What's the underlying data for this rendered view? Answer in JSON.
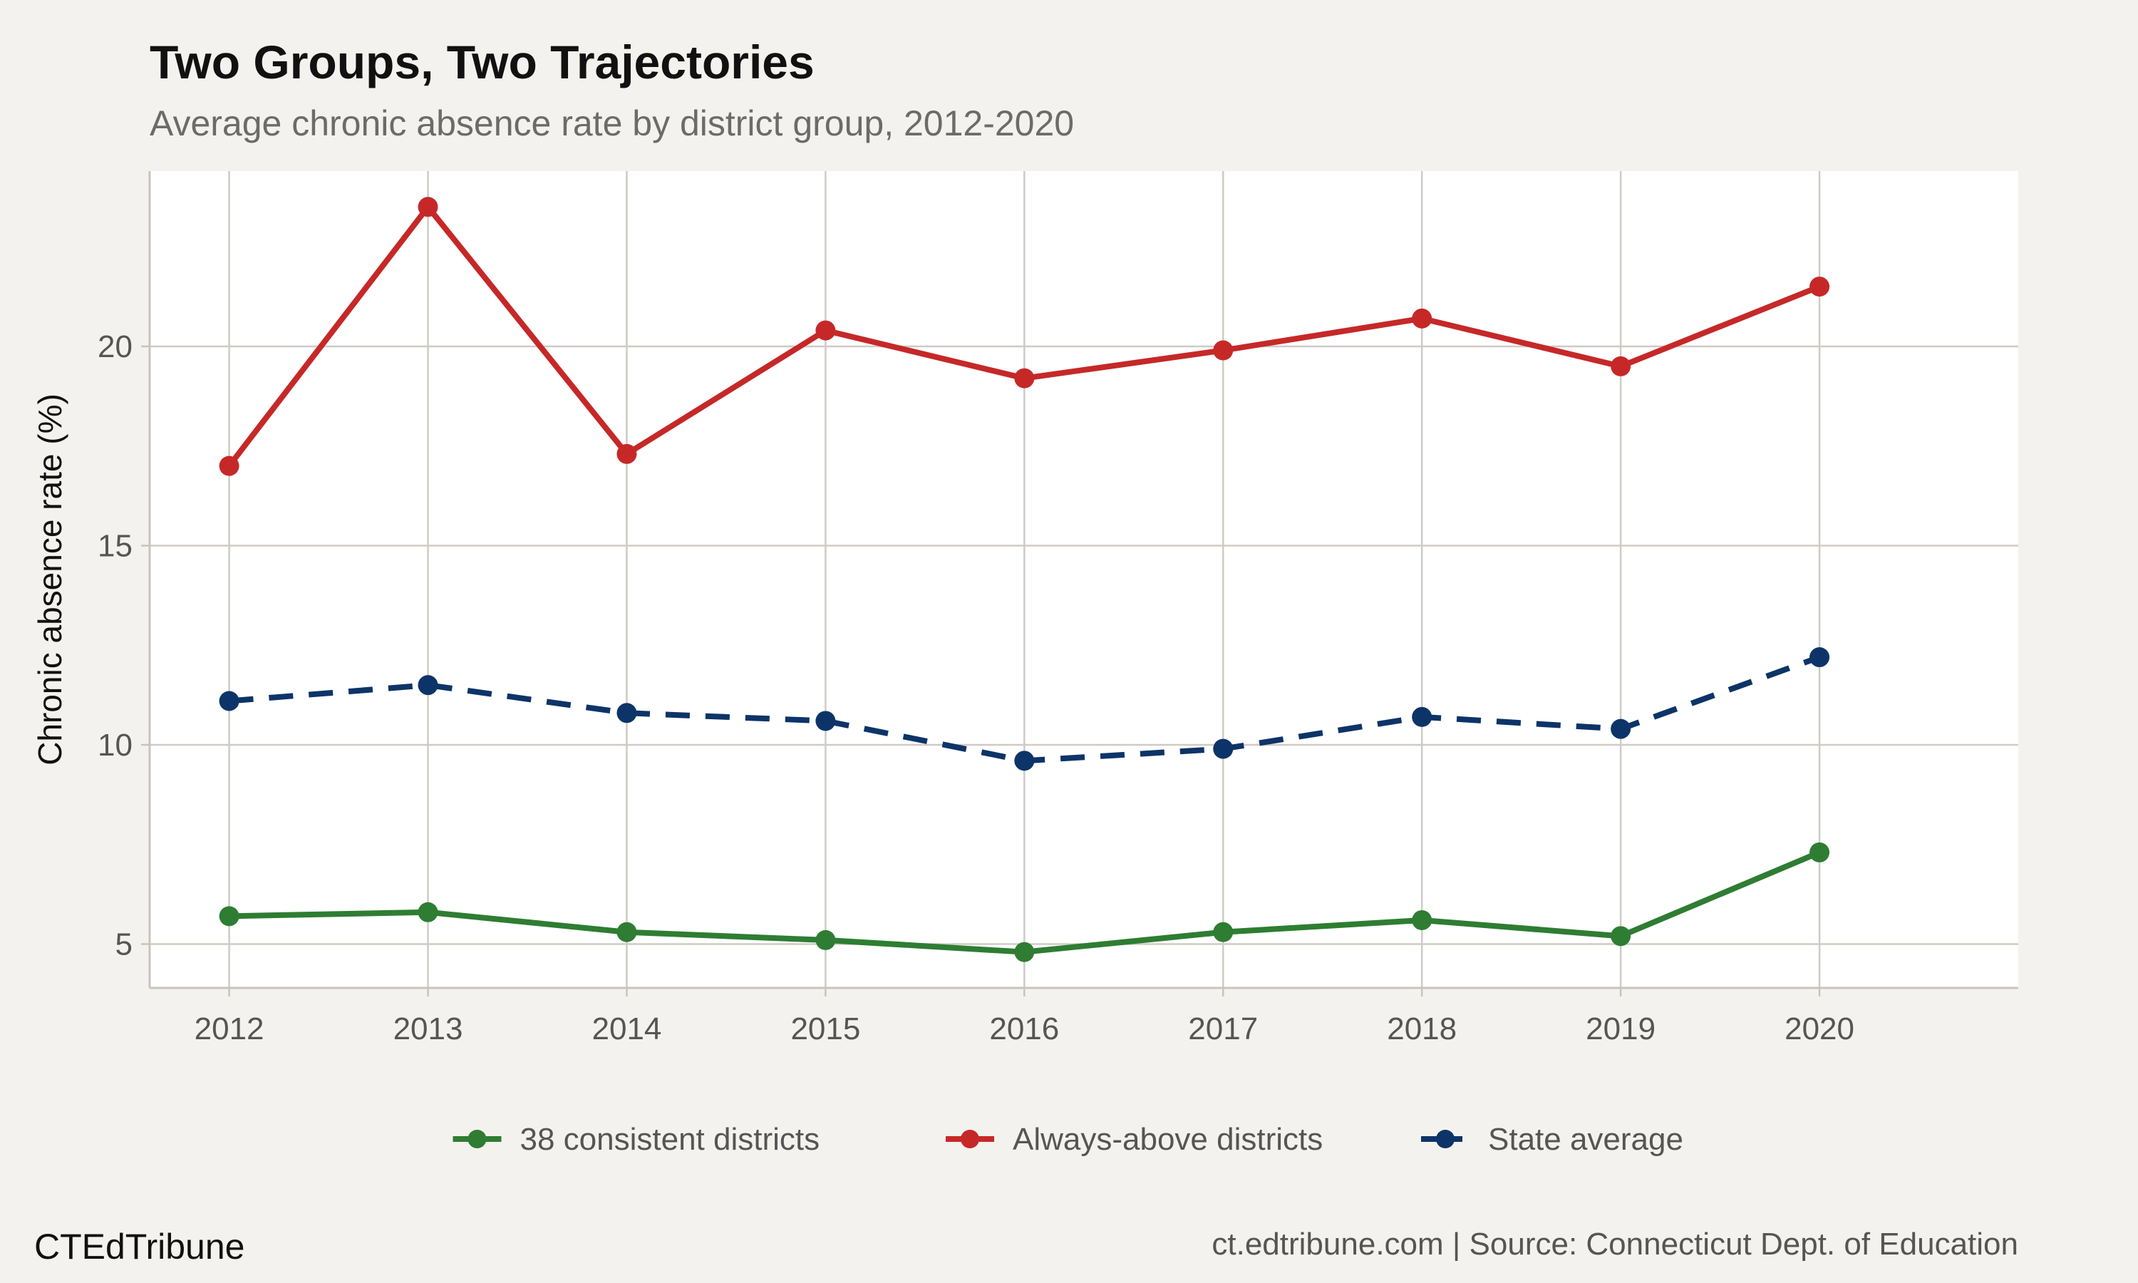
{
  "chart_data": {
    "type": "line",
    "title": "Two Groups, Two Trajectories",
    "subtitle": "Average chronic absence rate by district group, 2012-2020",
    "xlabel": "",
    "ylabel": "Chronic absence rate (%)",
    "x": [
      2012,
      2013,
      2014,
      2015,
      2016,
      2017,
      2018,
      2019,
      2020
    ],
    "xlim": [
      2011.6,
      2021.0
    ],
    "ylim": [
      3.9,
      24.4
    ],
    "yticks": [
      5,
      10,
      15,
      20
    ],
    "grid": true,
    "legend_position": "bottom",
    "series": [
      {
        "name": "38 consistent districts",
        "color": "#2e7d32",
        "dash": "solid",
        "values": [
          5.7,
          5.8,
          5.3,
          5.1,
          4.8,
          5.3,
          5.6,
          5.2,
          7.3
        ]
      },
      {
        "name": "Always-above districts",
        "color": "#c62828",
        "dash": "solid",
        "values": [
          17.0,
          23.5,
          17.3,
          20.4,
          19.2,
          19.9,
          20.7,
          19.5,
          21.5
        ]
      },
      {
        "name": "State average",
        "color": "#0d3468",
        "dash": "dashed",
        "values": [
          11.1,
          11.5,
          10.8,
          10.6,
          9.6,
          9.9,
          10.7,
          10.4,
          12.2
        ]
      }
    ]
  },
  "footer": {
    "brand": "CTEdTribune",
    "source": "ct.edtribune.com | Source: Connecticut Dept. of Education"
  }
}
